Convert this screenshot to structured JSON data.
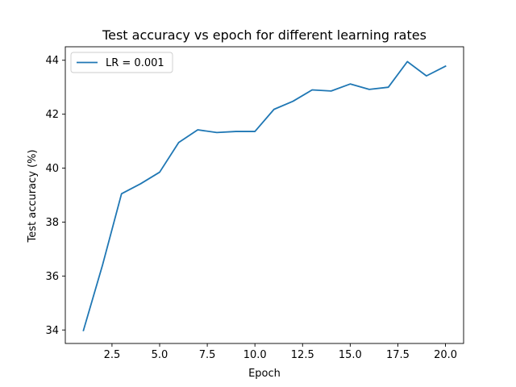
{
  "chart_data": {
    "type": "line",
    "title": "Test accuracy vs epoch for different learning rates",
    "xlabel": "Epoch",
    "ylabel": "Test accuracy (%)",
    "xlim": [
      0.05,
      20.95
    ],
    "ylim": [
      33.5,
      44.5
    ],
    "xticks": [
      2.5,
      5.0,
      7.5,
      10.0,
      12.5,
      15.0,
      17.5,
      20.0
    ],
    "xtick_labels": [
      "2.5",
      "5.0",
      "7.5",
      "10.0",
      "12.5",
      "15.0",
      "17.5",
      "20.0"
    ],
    "yticks": [
      34,
      36,
      38,
      40,
      42,
      44
    ],
    "ytick_labels": [
      "34",
      "36",
      "38",
      "40",
      "42",
      "44"
    ],
    "grid": false,
    "legend": "top-left",
    "x": [
      1,
      2,
      3,
      4,
      5,
      6,
      7,
      8,
      9,
      10,
      11,
      12,
      13,
      14,
      15,
      16,
      17,
      18,
      19,
      20
    ],
    "series": [
      {
        "name": "LR = 0.001",
        "color": "#1f77b4",
        "values": [
          33.98,
          36.4,
          39.05,
          39.42,
          39.85,
          40.95,
          41.42,
          41.32,
          41.36,
          41.36,
          42.18,
          42.48,
          42.9,
          42.86,
          43.12,
          42.92,
          43.0,
          43.95,
          43.42,
          43.78
        ]
      }
    ]
  }
}
